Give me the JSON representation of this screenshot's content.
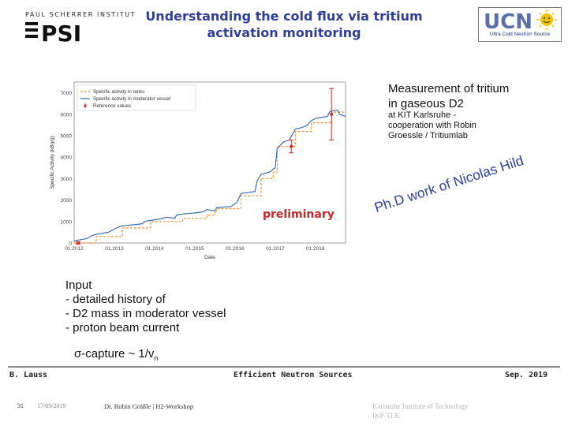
{
  "header": {
    "institute_text": "PAUL SCHERRER INSTITUT",
    "logo_text": "PSI",
    "title_line1": "Understanding the cold flux via tritium",
    "title_line2": "activation monitoring",
    "ucn_logo_text": "UCN",
    "ucn_caption": "Ultra Cold Neutron Source"
  },
  "chart_data": {
    "type": "line",
    "title": "",
    "xlabel": "Date",
    "ylabel": "Specific Activity (kBq/g)",
    "xlim": [
      2012.0,
      2018.75
    ],
    "ylim": [
      0,
      7500
    ],
    "x_ticks": [
      "01.2012",
      "01.2013",
      "01.2014",
      "01.2015",
      "01.2016",
      "01.2017",
      "01.2018"
    ],
    "y_ticks": [
      "0",
      "1000",
      "2000",
      "3000",
      "4000",
      "5000",
      "6000",
      "7000"
    ],
    "grid": true,
    "legend_position": "top-left",
    "series": [
      {
        "name": "Specific activity in tanks",
        "color": "#f28e2b",
        "style": "dashed",
        "x": [
          2012.0,
          2012.55,
          2012.55,
          2013.2,
          2013.2,
          2013.9,
          2013.9,
          2014.7,
          2014.7,
          2015.3,
          2015.3,
          2015.5,
          2015.5,
          2015.55,
          2015.55,
          2016.15,
          2016.15,
          2016.65,
          2016.65,
          2016.95,
          2016.95,
          2017.05,
          2017.05,
          2017.5,
          2017.5,
          2017.9,
          2017.9,
          2018.4,
          2018.4,
          2018.75
        ],
        "y": [
          0,
          0,
          300,
          300,
          700,
          700,
          1000,
          1000,
          1150,
          1150,
          1300,
          1300,
          1500,
          1500,
          1600,
          1600,
          2200,
          2200,
          3000,
          3000,
          3300,
          3300,
          4500,
          4500,
          5200,
          5200,
          5600,
          5600,
          6100,
          6100
        ]
      },
      {
        "name": "Specific activity in moderator vessel",
        "color": "#3b6fb6",
        "style": "solid",
        "x": [
          2012.0,
          2012.3,
          2012.45,
          2012.55,
          2012.85,
          2013.05,
          2013.2,
          2013.5,
          2013.7,
          2013.75,
          2013.9,
          2014.1,
          2014.3,
          2014.5,
          2014.55,
          2014.7,
          2015.0,
          2015.2,
          2015.3,
          2015.5,
          2015.55,
          2015.9,
          2016.05,
          2016.15,
          2016.5,
          2016.55,
          2016.65,
          2016.85,
          2016.9,
          2016.95,
          2017.0,
          2017.05,
          2017.2,
          2017.35,
          2017.5,
          2017.7,
          2017.8,
          2017.9,
          2018.0,
          2018.15,
          2018.3,
          2018.35,
          2018.4,
          2018.55,
          2018.6,
          2018.75
        ],
        "y": [
          100,
          200,
          350,
          400,
          500,
          700,
          800,
          850,
          900,
          1000,
          1050,
          1100,
          1200,
          1150,
          1300,
          1350,
          1400,
          1450,
          1550,
          1500,
          1650,
          1700,
          1900,
          2300,
          2400,
          2900,
          3200,
          3300,
          3350,
          3450,
          3500,
          4400,
          4700,
          4800,
          5300,
          5400,
          5500,
          5700,
          5800,
          5850,
          5900,
          6100,
          6150,
          6200,
          6000,
          5900
        ]
      },
      {
        "name": "Reference values",
        "color": "#d62728",
        "style": "errorbar",
        "x": [
          2012.1,
          2017.4,
          2018.4
        ],
        "y": [
          0,
          4500,
          6000
        ],
        "err": [
          60,
          300,
          1200
        ]
      }
    ]
  },
  "annotations": {
    "preliminary": "preliminary",
    "phd": "Ph.D work of Nicolas Hild"
  },
  "measurement": {
    "title_line1": "Measurement of tritium",
    "title_line2": "in gaseous D2",
    "sub_line1": "at KIT Karlsruhe -",
    "sub_line2": "cooperation with Robin",
    "sub_line3": "Groessle / Tritiumlab"
  },
  "input": {
    "heading": "Input",
    "items": [
      "- detailed history of",
      "- D2 mass in moderator vessel",
      "- proton beam current"
    ],
    "sigma_prefix": "σ-capture ~ 1/v",
    "sigma_sub": "n"
  },
  "footer": {
    "author": "B. Lauss",
    "center": "Efficient Neutron Sources",
    "date": "Sep. 2019"
  },
  "bottom": {
    "slide_number": "31",
    "slide_date": "17/09/2019",
    "event": "Dr. Robin Größle | H2-Workshop",
    "org_line1": "Karlsruhe Institute of Technology",
    "org_line2": "IKP-TLK"
  }
}
